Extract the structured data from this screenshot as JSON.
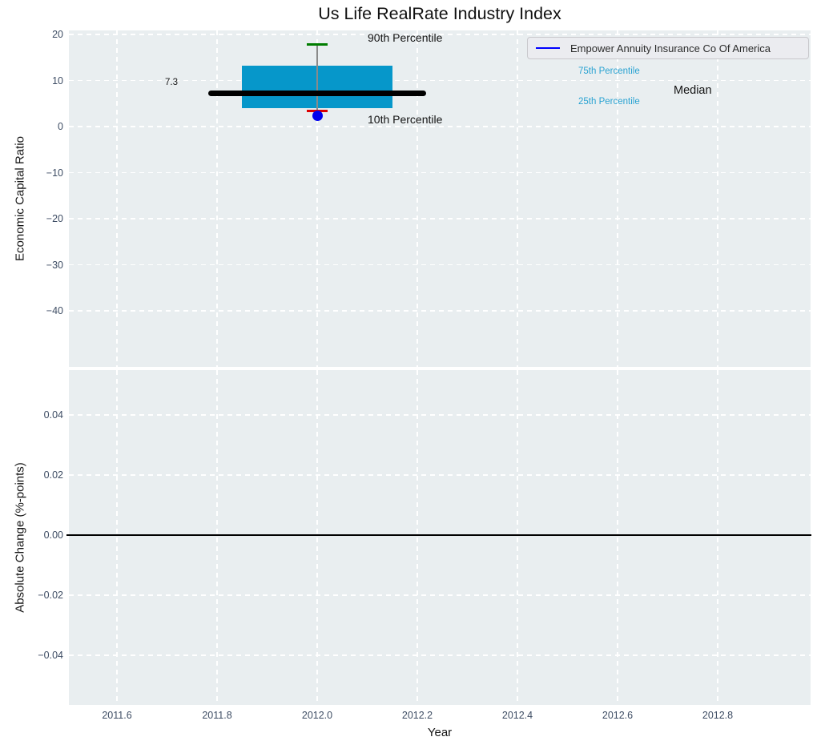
{
  "title": "Us Life RealRate Industry Index",
  "legend": {
    "label": "Empower Annuity Insurance Co Of America",
    "line_color": "#0000ff"
  },
  "annotations": {
    "p90_label": "90th Percentile",
    "p75_label": "75th Percentile",
    "median_label": "Median",
    "median_value_label": "7.3",
    "p25_label": "25th Percentile",
    "p10_label": "10th Percentile"
  },
  "colors": {
    "axes_background": "#e9eef0",
    "gridline": "#ffffff",
    "box_fill": "#0697ca",
    "percentile_label_text": "#2aa3d2",
    "tick_text": "#3d4c63",
    "p90_cap": "#007d00",
    "p10_cap": "#dd0000",
    "median_line": "#000000",
    "whisker_line": "#8a8a8a",
    "company_marker": "#0000ee",
    "zero_line": "#000000"
  },
  "chart_data": {
    "type": "box",
    "title": "Us Life RealRate Industry Index",
    "xlabel": "Year",
    "xlim": [
      2011.5,
      2012.99
    ],
    "grid": true,
    "legend_position": "upper right",
    "xticks": {
      "values": [
        2011.6,
        2011.8,
        2012.0,
        2012.2,
        2012.4,
        2012.6,
        2012.8
      ],
      "labels": [
        "2011.6",
        "2011.8",
        "2012.0",
        "2012.2",
        "2012.4",
        "2012.6",
        "2012.8"
      ]
    },
    "top_panel": {
      "ylabel": "Economic Capital Ratio",
      "ylim": [
        -52.2,
        20.9
      ],
      "yticks": {
        "values": [
          20,
          10,
          0,
          -10,
          -20,
          -30,
          -40
        ],
        "labels": [
          "20",
          "10",
          "0",
          "−10",
          "−20",
          "−30",
          "−40"
        ]
      },
      "box": {
        "year": 2012.0,
        "p90": 17.8,
        "p75": 13.2,
        "median": 7.3,
        "p25": 4.0,
        "p10": 3.4,
        "company_value": 2.4,
        "box_half_width": 0.151,
        "median_half_width": 0.218,
        "cap_half_width": 0.021
      }
    },
    "bottom_panel": {
      "ylabel": "Absolute Change (%-points)",
      "ylim": [
        -0.0566,
        0.0549
      ],
      "yticks": {
        "values": [
          0.04,
          0.02,
          0.0,
          -0.02,
          -0.04
        ],
        "labels": [
          "0.04",
          "0.02",
          "0.00",
          "−0.02",
          "−0.04"
        ]
      },
      "zero_line_y": 0.0
    }
  }
}
